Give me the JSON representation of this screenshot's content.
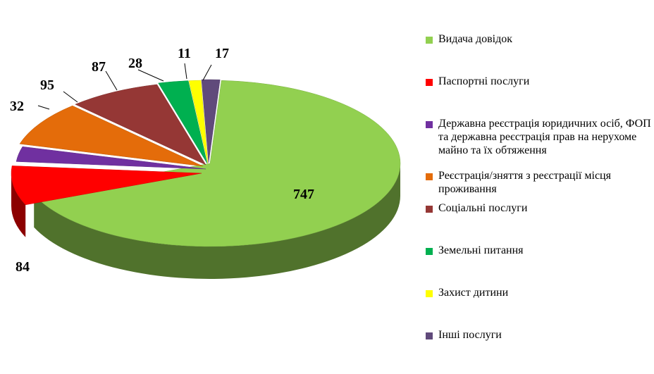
{
  "chart_data": {
    "type": "pie",
    "title": "",
    "categories": [
      "Видача довідок",
      "Паспортні послуги",
      "Державна реєстрація юридичних осіб, ФОП та державна реєстрація прав на нерухоме майно та їх обтяження",
      "Реєстрація/зняття з реєстрації місця проживання",
      "Соціальні послуги",
      "Земельні питання",
      "Захист дитини",
      "Інші послуги"
    ],
    "values": [
      747,
      84,
      32,
      95,
      87,
      28,
      11,
      17
    ],
    "colors": [
      "#92d050",
      "#ff0000",
      "#7030a0",
      "#e46c0a",
      "#953735",
      "#00b050",
      "#ffff00",
      "#604a7b"
    ],
    "value_labels": [
      "747",
      "84",
      "32",
      "95",
      "87",
      "28",
      "11",
      "17"
    ],
    "legend_position": "right",
    "style": "3d-exploded"
  }
}
